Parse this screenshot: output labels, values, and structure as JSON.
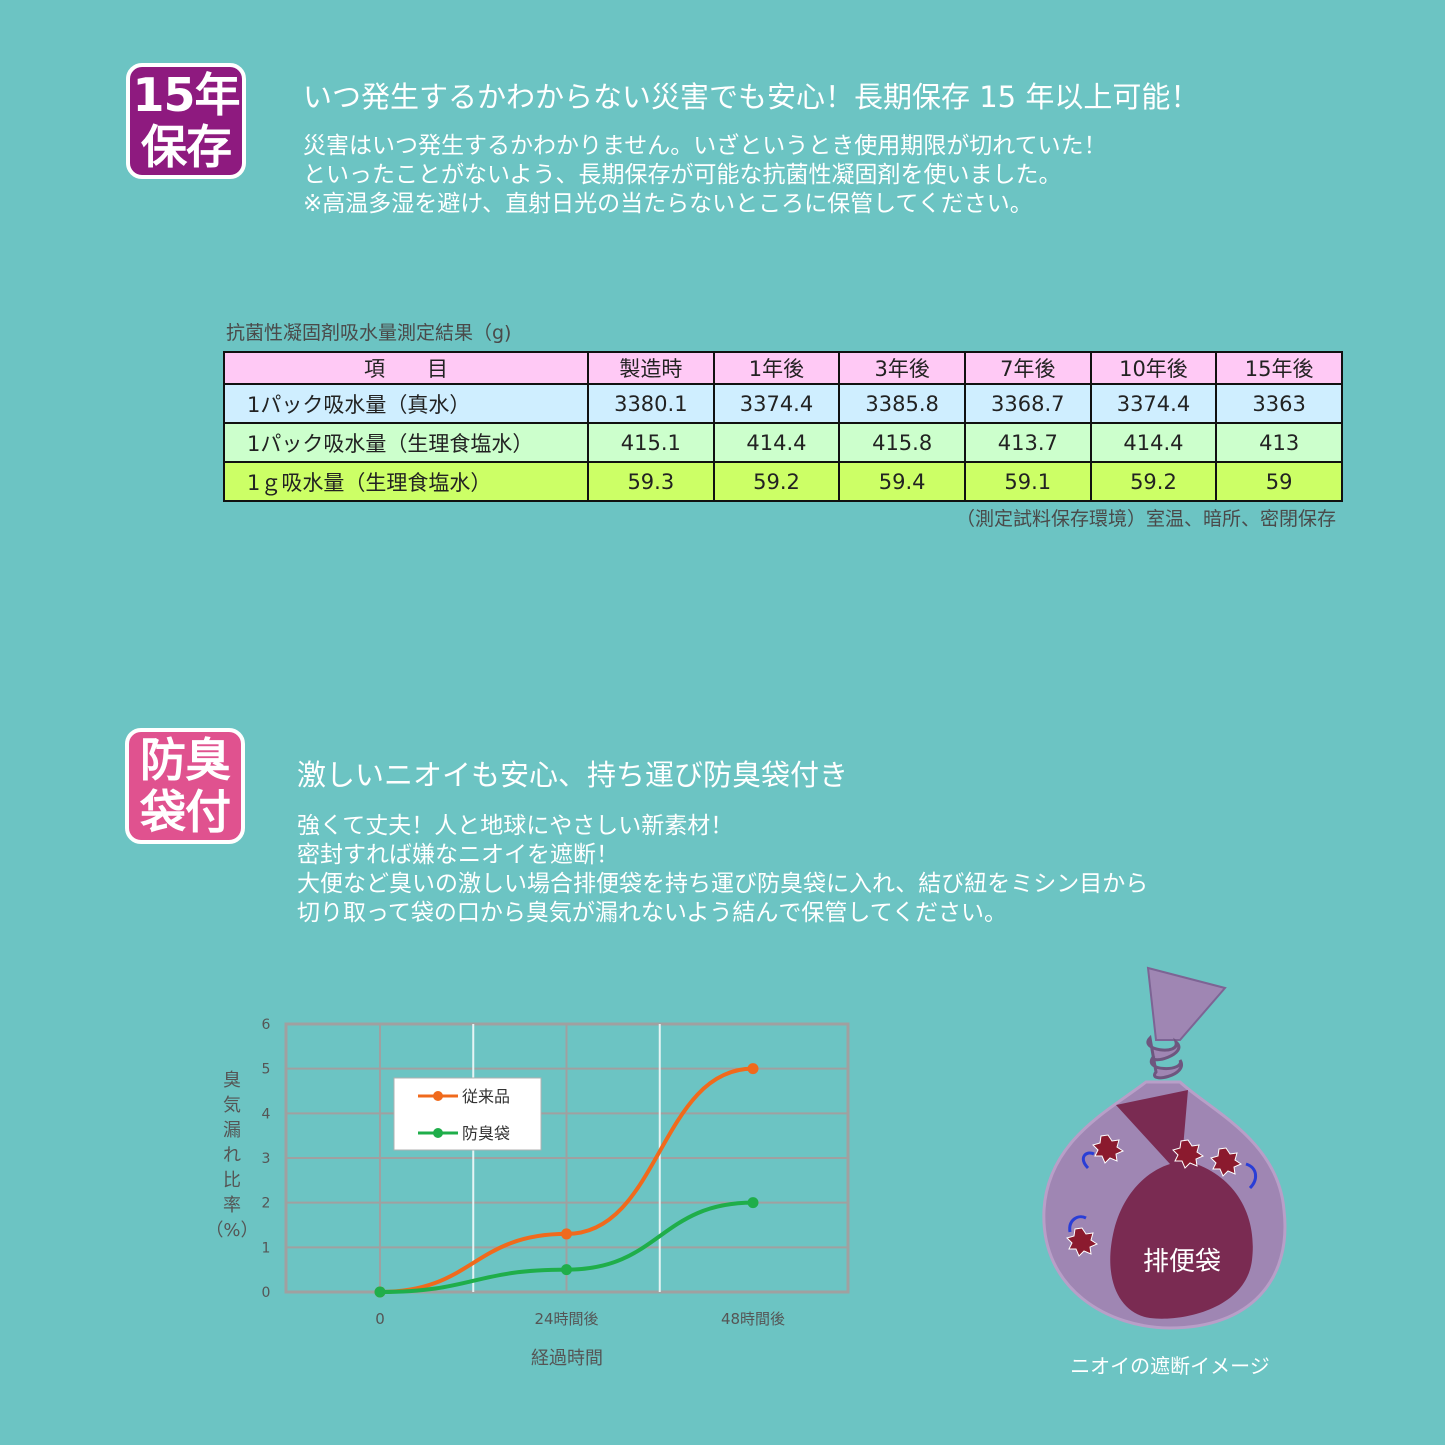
{
  "section1": {
    "badge_line1": "15年",
    "badge_line2": "保存",
    "badge_color": "#8e1a7f",
    "heading": "いつ発生するかわからない災害でも安心！長期保存 15 年以上可能！",
    "lines": [
      "災害はいつ発生するかわかりません。いざというとき使用期限が切れていた！",
      "といったことがないよう、長期保存が可能な抗菌性凝固剤を使いました。",
      "※高温多湿を避け、直射日光の当たらないところに保管してください。"
    ]
  },
  "table": {
    "title": "抗菌性凝固剤吸水量測定結果（g)",
    "headers": [
      "項　　目",
      "製造時",
      "1年後",
      "3年後",
      "7年後",
      "10年後",
      "15年後"
    ],
    "rows": [
      {
        "label": "1パック吸水量（真水）",
        "values": [
          "3380.1",
          "3374.4",
          "3385.8",
          "3368.7",
          "3374.4",
          "3363"
        ]
      },
      {
        "label": "1パック吸水量（生理食塩水）",
        "values": [
          "415.1",
          "414.4",
          "415.8",
          "413.7",
          "414.4",
          "413"
        ]
      },
      {
        "label": "1ｇ吸水量（生理食塩水）",
        "values": [
          "59.3",
          "59.2",
          "59.4",
          "59.1",
          "59.2",
          "59"
        ]
      }
    ],
    "note": "（測定試料保存環境）室温、暗所、密閉保存"
  },
  "section2": {
    "badge_line1": "防臭",
    "badge_line2": "袋付",
    "badge_color": "#e0528f",
    "heading": "激しいニオイも安心、持ち運び防臭袋付き",
    "lines": [
      "強くて丈夫！人と地球にやさしい新素材！",
      "密封すれば嫌なニオイを遮断！",
      "大便など臭いの激しい場合排便袋を持ち運び防臭袋に入れ、結び紐をミシン目から",
      "切り取って袋の口から臭気が漏れないよう結んで保管してください。"
    ]
  },
  "chart_data": {
    "type": "line",
    "categories": [
      "0",
      "24時間後",
      "48時間後"
    ],
    "x": [
      0,
      24,
      48
    ],
    "series": [
      {
        "name": "従来品",
        "values": [
          0,
          1.3,
          5
        ],
        "color": "#f06a1c"
      },
      {
        "name": "防臭袋",
        "values": [
          0,
          0.5,
          2
        ],
        "color": "#1fae4a"
      }
    ],
    "xlabel": "経過時間",
    "ylabel": "臭気漏れ比率（%）",
    "ylabel_chars": [
      "臭",
      "気",
      "漏",
      "れ",
      "比",
      "率",
      "（%）"
    ],
    "ylim": [
      0,
      6
    ],
    "yticks": [
      "0",
      "1",
      "2",
      "3",
      "4",
      "5",
      "6"
    ],
    "grid": true,
    "legend": "top-left"
  },
  "illustration": {
    "bag_label": "排便袋",
    "caption": "ニオイの遮断イメージ",
    "outer_bag_color": "#9f86b3",
    "inner_bag_color": "#7a2b52"
  }
}
